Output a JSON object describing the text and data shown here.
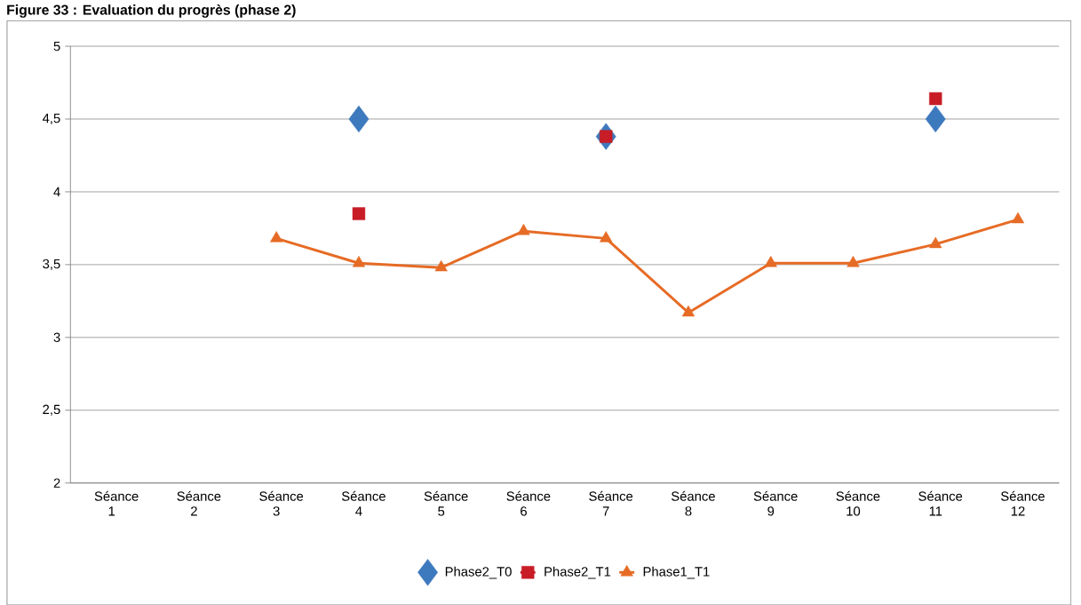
{
  "chart_data": {
    "type": "line",
    "title": "Figure 33 : Evaluation du progrès (phase 2)",
    "categories": [
      "Séance 1",
      "Séance 2",
      "Séance 3",
      "Séance 4",
      "Séance 5",
      "Séance 6",
      "Séance 7",
      "Séance 8",
      "Séance 9",
      "Séance 10",
      "Séance 11",
      "Séance 12"
    ],
    "series": [
      {
        "name": "Phase2_T0",
        "type": "scatter",
        "color": "#3d79bd",
        "marker": "diamond",
        "values": [
          null,
          null,
          null,
          4.5,
          null,
          null,
          4.38,
          null,
          null,
          null,
          4.5,
          null
        ]
      },
      {
        "name": "Phase2_T1",
        "type": "scatter",
        "color": "#c81d26",
        "marker": "square",
        "values": [
          null,
          null,
          null,
          3.85,
          null,
          null,
          4.38,
          null,
          null,
          null,
          4.64,
          null
        ]
      },
      {
        "name": "Phase1_T1",
        "color": "#e66b25",
        "marker": "triangle",
        "values": [
          null,
          null,
          3.68,
          3.51,
          3.48,
          3.73,
          3.68,
          3.17,
          3.51,
          3.51,
          3.64,
          3.81
        ]
      }
    ],
    "ylim": [
      2,
      5
    ],
    "yticks": [
      2,
      {
        "value": 2.5,
        "label": "2,5"
      },
      3,
      {
        "value": 3.5,
        "label": "3,5"
      },
      4,
      {
        "value": 4.5,
        "label": "4,5"
      },
      5
    ],
    "grid": "y",
    "legend": "bottom",
    "line_style": "solid"
  }
}
